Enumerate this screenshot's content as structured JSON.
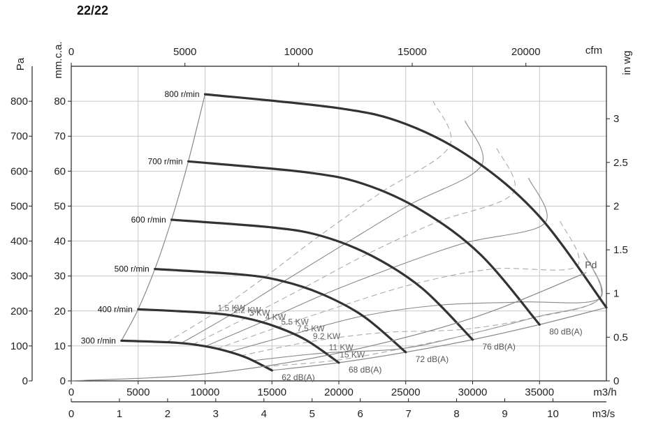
{
  "title": "22/22",
  "chart_data": {
    "type": "line",
    "title": "22/22",
    "x": {
      "m3h": {
        "unit": "m3/h",
        "range": [
          0,
          40000
        ],
        "ticks": [
          0,
          5000,
          10000,
          15000,
          20000,
          25000,
          30000,
          35000
        ]
      },
      "m3s": {
        "unit": "m3/s",
        "range": [
          0,
          11.11
        ],
        "ticks": [
          0,
          1,
          2,
          3,
          4,
          5,
          6,
          7,
          8,
          9,
          10
        ]
      },
      "cfm": {
        "unit": "cfm",
        "range": [
          0,
          23543
        ],
        "ticks": [
          0,
          5000,
          10000,
          15000,
          20000
        ]
      }
    },
    "y": {
      "pa": {
        "unit": "Pa",
        "range": [
          0,
          900
        ],
        "ticks": [
          0,
          100,
          200,
          300,
          400,
          500,
          600,
          700,
          800
        ]
      },
      "mmca": {
        "unit": "mm.c.a.",
        "range": [
          0,
          90
        ],
        "ticks": [
          0,
          10,
          20,
          30,
          40,
          50,
          60,
          70,
          80
        ]
      },
      "inwg": {
        "unit": "in wg",
        "range": [
          0,
          3.6
        ],
        "ticks": [
          0,
          0.5,
          1,
          1.5,
          2,
          2.5,
          3
        ]
      }
    },
    "grid": true,
    "speed_curves": [
      {
        "label": "800 r/min",
        "points": [
          [
            10000,
            820
          ],
          [
            20000,
            780
          ],
          [
            25000,
            735
          ],
          [
            30000,
            635
          ],
          [
            35000,
            470
          ],
          [
            40000,
            210
          ]
        ]
      },
      {
        "label": "700 r/min",
        "points": [
          [
            8750,
            628
          ],
          [
            17500,
            597
          ],
          [
            21875,
            563
          ],
          [
            26250,
            486
          ],
          [
            30625,
            360
          ],
          [
            35000,
            161
          ]
        ]
      },
      {
        "label": "600 r/min",
        "points": [
          [
            7500,
            461
          ],
          [
            15000,
            439
          ],
          [
            18750,
            414
          ],
          [
            22500,
            357
          ],
          [
            26250,
            264
          ],
          [
            30000,
            118
          ]
        ]
      },
      {
        "label": "500 r/min",
        "points": [
          [
            6250,
            320
          ],
          [
            12500,
            305
          ],
          [
            15625,
            287
          ],
          [
            18750,
            248
          ],
          [
            21875,
            184
          ],
          [
            25000,
            82
          ]
        ]
      },
      {
        "label": "400 r/min",
        "points": [
          [
            5000,
            205
          ],
          [
            10000,
            195
          ],
          [
            12500,
            184
          ],
          [
            15000,
            159
          ],
          [
            17500,
            118
          ],
          [
            20000,
            52
          ]
        ]
      },
      {
        "label": "300 r/min",
        "points": [
          [
            3750,
            115
          ],
          [
            7500,
            110
          ],
          [
            9375,
            103
          ],
          [
            11250,
            89
          ],
          [
            13125,
            66
          ],
          [
            15000,
            30
          ]
        ]
      }
    ],
    "power_curves": [
      {
        "label": "1.5 KW",
        "style": "dashed"
      },
      {
        "label": "2.2 KW",
        "style": "solid"
      },
      {
        "label": "3 KW",
        "style": "dashed"
      },
      {
        "label": "4 KW",
        "style": "solid"
      },
      {
        "label": "5.5 KW",
        "style": "dashed"
      },
      {
        "label": "7.5 KW",
        "style": "solid"
      },
      {
        "label": "9.2 KW",
        "style": "dashed"
      },
      {
        "label": "11 KW",
        "style": "solid"
      },
      {
        "label": "15 KW",
        "style": "dashed"
      }
    ],
    "noise_levels": [
      "62 dB(A)",
      "68 dB(A)",
      "72 dB(A)",
      "76 dB(A)",
      "80 dB(A)"
    ],
    "pd_curve": {
      "label": "Pd",
      "points": [
        [
          0,
          0
        ],
        [
          10000,
          20
        ],
        [
          20000,
          80
        ],
        [
          30000,
          180
        ],
        [
          38500,
          310
        ]
      ]
    }
  }
}
